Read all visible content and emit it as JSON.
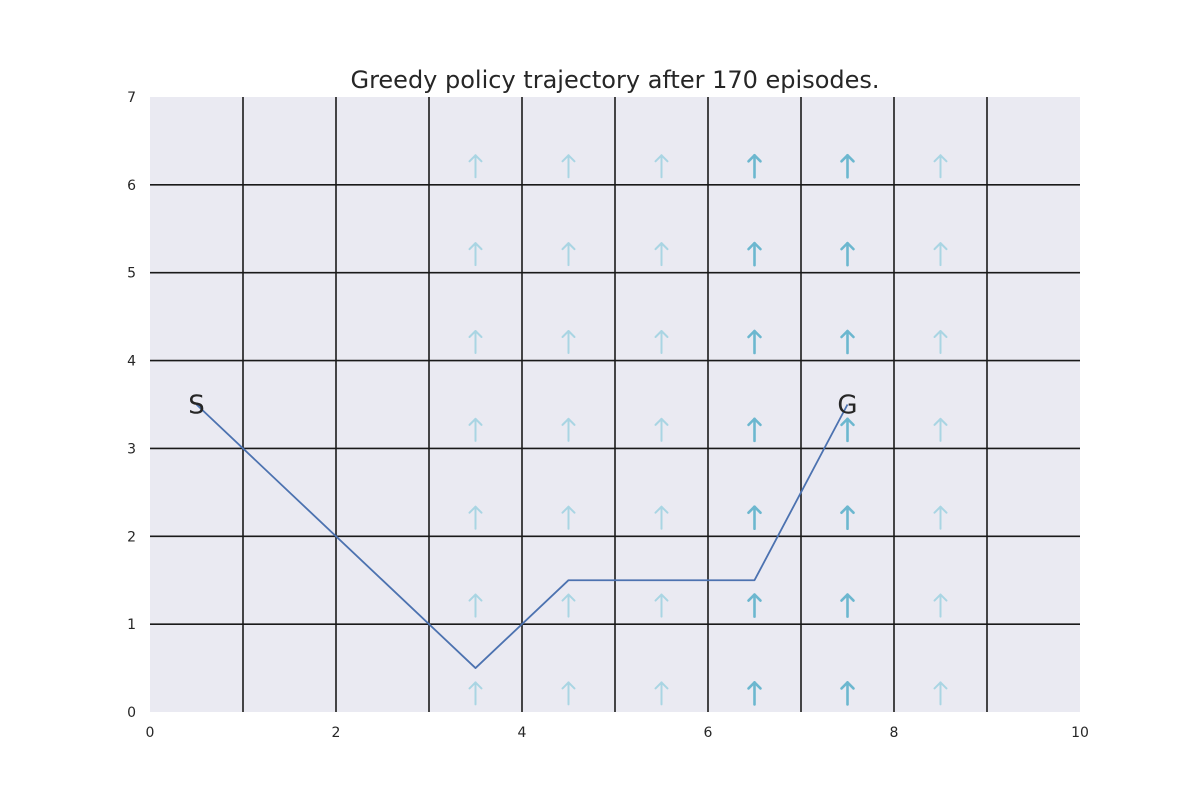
{
  "chart_data": {
    "type": "line",
    "title": "Greedy policy trajectory after 170 episodes.",
    "xlabel": "",
    "ylabel": "",
    "xlim": [
      0,
      10
    ],
    "ylim": [
      0,
      7
    ],
    "x_ticks": [
      0,
      2,
      4,
      6,
      8,
      10
    ],
    "y_ticks": [
      0,
      1,
      2,
      3,
      4,
      5,
      6,
      7
    ],
    "x_tick_labels": [
      "0",
      "2",
      "4",
      "6",
      "8",
      "10"
    ],
    "y_tick_labels": [
      "0",
      "1",
      "2",
      "3",
      "4",
      "5",
      "6",
      "7"
    ],
    "grid": true,
    "grid_lines_x": [
      1,
      2,
      3,
      4,
      5,
      6,
      7,
      8,
      9
    ],
    "grid_lines_y": [
      1,
      2,
      3,
      4,
      5,
      6
    ],
    "colors": {
      "background": "#eaeaf2",
      "grid": "#1a1a1a",
      "trajectory": "#4c72b0",
      "arrow_light": "#a9d5e3",
      "arrow_dark": "#6cb7cf",
      "text": "#262626"
    },
    "trajectory": {
      "x": [
        0.5,
        1.5,
        2.5,
        3.5,
        4.5,
        5.5,
        6.5,
        7.5
      ],
      "y": [
        3.5,
        2.5,
        1.5,
        0.5,
        1.5,
        1.5,
        1.5,
        3.5
      ]
    },
    "start": {
      "label": "S",
      "x": 0.5,
      "y": 3.5
    },
    "goal": {
      "label": "G",
      "x": 7.5,
      "y": 3.5
    },
    "wind_arrows": {
      "icon": "arrow-up-icon",
      "columns": [
        {
          "x": 3.5,
          "strength": 1
        },
        {
          "x": 4.5,
          "strength": 1
        },
        {
          "x": 5.5,
          "strength": 1
        },
        {
          "x": 6.5,
          "strength": 2
        },
        {
          "x": 7.5,
          "strength": 2
        },
        {
          "x": 8.5,
          "strength": 1
        }
      ],
      "rows_y": [
        0.2,
        1.2,
        2.2,
        3.2,
        4.2,
        5.2,
        6.2
      ]
    }
  }
}
